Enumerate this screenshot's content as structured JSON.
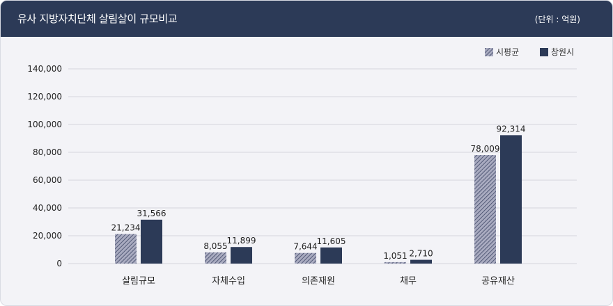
{
  "header": {
    "title": "유사 지방자치단체 살림살이 규모비교",
    "unit": "(단위 : 억원)"
  },
  "colors": {
    "header_bg": "#2c3a57",
    "series_avg": "#a9abc0",
    "series_avg_hatch": "#3e4766",
    "series_city": "#2c3a57",
    "grid": "#d4d6de"
  },
  "chart_data": {
    "type": "bar",
    "categories": [
      "살림규모",
      "자체수입",
      "의존재원",
      "채무",
      "공유재산"
    ],
    "series": [
      {
        "name": "시평균",
        "values": [
          21234,
          8055,
          7644,
          1051,
          78009
        ],
        "labels": [
          "21,234",
          "8,055",
          "7,644",
          "1,051",
          "78,009"
        ],
        "pattern": "hatched"
      },
      {
        "name": "창원시",
        "values": [
          31566,
          11899,
          11605,
          2710,
          92314
        ],
        "labels": [
          "31,566",
          "11,899",
          "11,605",
          "2,710",
          "92,314"
        ],
        "pattern": "solid"
      }
    ],
    "ylim": [
      0,
      140000
    ],
    "yticks": [
      0,
      20000,
      40000,
      60000,
      80000,
      100000,
      120000,
      140000
    ],
    "ytick_labels": [
      "0",
      "20,000",
      "40,000",
      "60,000",
      "80,000",
      "100,000",
      "120,000",
      "140,000"
    ],
    "grid": true,
    "legend_position": "top-right"
  }
}
